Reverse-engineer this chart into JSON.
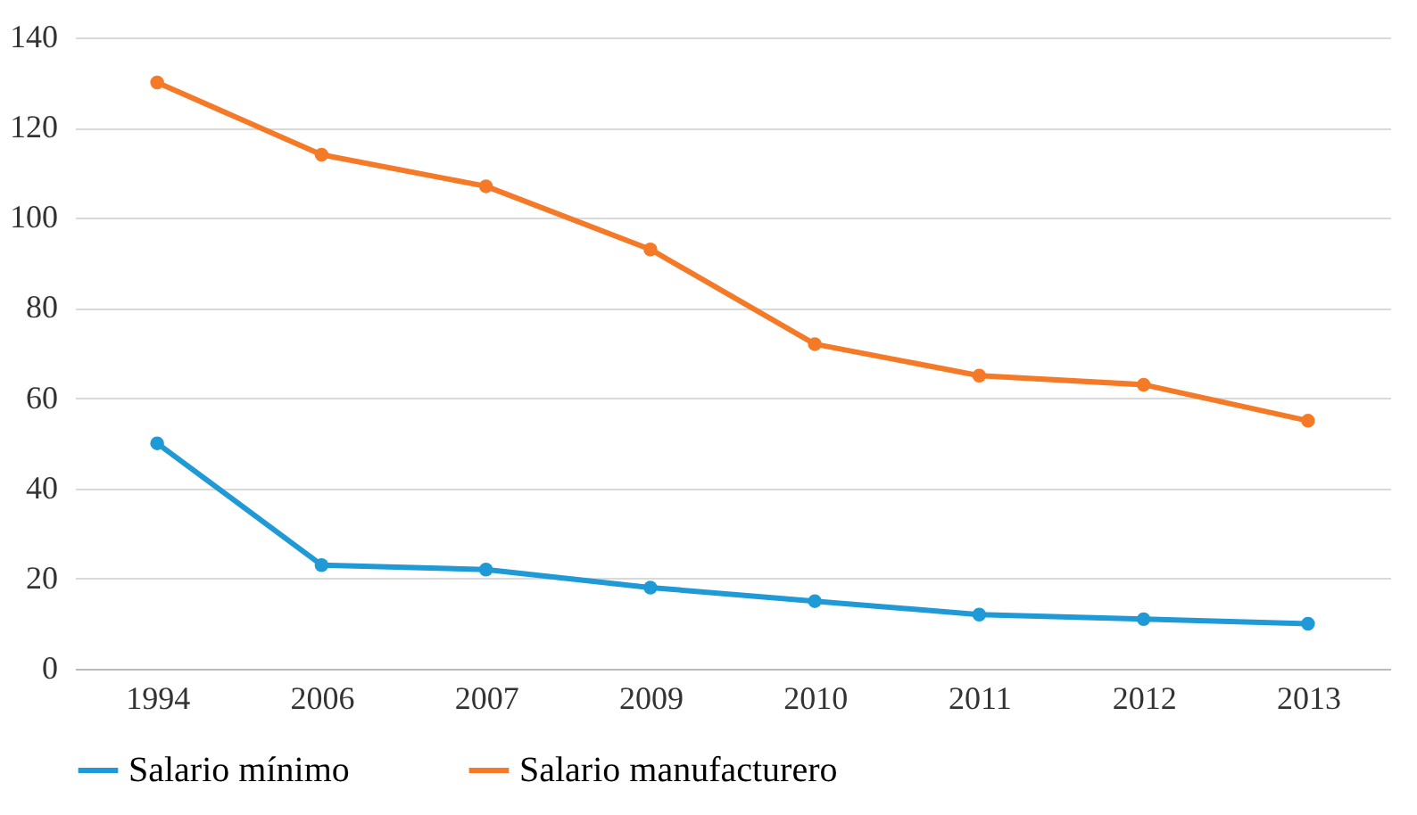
{
  "chart_data": {
    "type": "line",
    "categories": [
      "1994",
      "2006",
      "2007",
      "2009",
      "2010",
      "2011",
      "2012",
      "2013"
    ],
    "series": [
      {
        "name": "Salario mínimo",
        "color": "#1f9ad6",
        "values": [
          50,
          23,
          22,
          18,
          15,
          12,
          11,
          10
        ]
      },
      {
        "name": "Salario manufacturero",
        "color": "#f47a28",
        "values": [
          130,
          114,
          107,
          93,
          72,
          65,
          63,
          55
        ]
      }
    ],
    "ylim": [
      0,
      140
    ],
    "yticks": [
      0,
      20,
      40,
      60,
      80,
      100,
      120,
      140
    ],
    "grid": "y",
    "legend": "bottom",
    "marker": "circle",
    "line_style": "solid"
  }
}
